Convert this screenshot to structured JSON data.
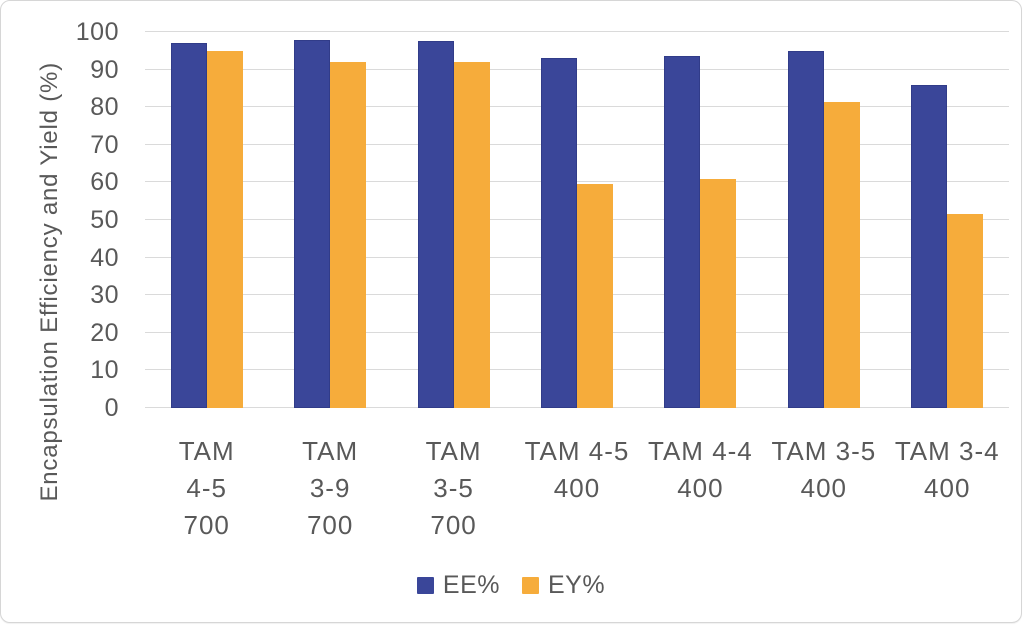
{
  "chart_data": {
    "type": "bar",
    "title": "",
    "ylabel": "Encapsulation Efficiency and Yield (%)",
    "xlabel": "",
    "ylim": [
      0,
      100
    ],
    "yticks": [
      0,
      10,
      20,
      30,
      40,
      50,
      60,
      70,
      80,
      90,
      100
    ],
    "grid": true,
    "legend_position": "bottom",
    "categories": [
      "TAM 4-5 700",
      "TAM 3-9 700",
      "TAM 3-5 700",
      "TAM 4-5 400",
      "TAM 4-4 400",
      "TAM 3-5 400",
      "TAM 3-4 400"
    ],
    "category_label_lines": [
      [
        "TAM",
        "4-5",
        "700"
      ],
      [
        "TAM",
        "3-9",
        "700"
      ],
      [
        "TAM",
        "3-5",
        "700"
      ],
      [
        "TAM 4-5",
        "400"
      ],
      [
        "TAM 4-4",
        "400"
      ],
      [
        "TAM 3-5",
        "400"
      ],
      [
        "TAM 3-4",
        "400"
      ]
    ],
    "series": [
      {
        "name": "EE%",
        "color": "#3a4699",
        "values": [
          97,
          98,
          97.5,
          93,
          93.5,
          95,
          86
        ]
      },
      {
        "name": "EY%",
        "color": "#f6ac3b",
        "values": [
          95,
          92,
          92,
          59.5,
          61,
          81.5,
          51.5
        ]
      }
    ]
  },
  "colors": {
    "ee_bar": "#3a4699",
    "ey_bar": "#f6ac3b",
    "gridline": "#dadada",
    "text": "#595959",
    "background": "#ffffff",
    "card_border": "#d6d6d6"
  }
}
